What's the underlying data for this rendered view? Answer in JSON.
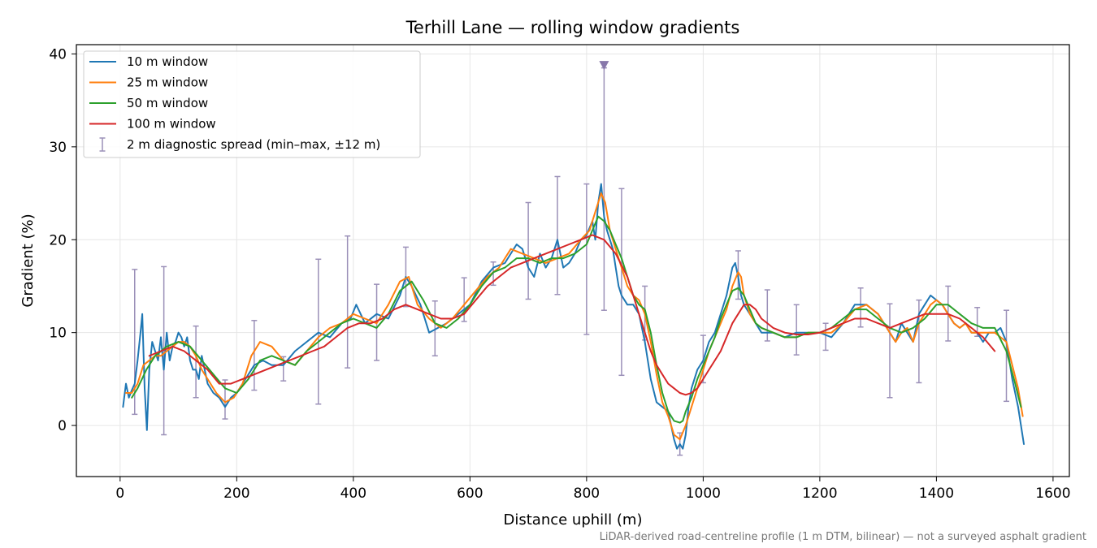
{
  "chart_data": {
    "type": "line",
    "title": "Terhill Lane — rolling window gradients",
    "xlabel": "Distance uphill (m)",
    "ylabel": "Gradient (%)",
    "xlim": [
      -75,
      1628
    ],
    "ylim": [
      -5.5,
      41
    ],
    "xticks": [
      0,
      200,
      400,
      600,
      800,
      1000,
      1200,
      1400,
      1600
    ],
    "yticks": [
      0,
      10,
      20,
      30,
      40
    ],
    "grid": true,
    "legend_position": "top-left",
    "footnote": "LiDAR-derived road-centreline profile (1 m DTM, bilinear) — not a surveyed asphalt gradient",
    "series": [
      {
        "name": "10 m window",
        "color": "#1f77b4",
        "x": [
          5,
          10,
          15,
          20,
          25,
          30,
          35,
          38,
          42,
          46,
          50,
          55,
          60,
          65,
          70,
          75,
          80,
          85,
          90,
          95,
          100,
          105,
          110,
          115,
          120,
          125,
          130,
          135,
          140,
          145,
          150,
          160,
          170,
          180,
          190,
          200,
          215,
          230,
          245,
          260,
          280,
          300,
          320,
          340,
          360,
          380,
          395,
          405,
          420,
          440,
          460,
          480,
          490,
          500,
          515,
          530,
          545,
          560,
          580,
          600,
          620,
          640,
          660,
          680,
          690,
          700,
          710,
          720,
          730,
          740,
          750,
          760,
          770,
          780,
          790,
          800,
          810,
          815,
          820,
          825,
          830,
          835,
          840,
          845,
          850,
          855,
          860,
          870,
          880,
          890,
          900,
          910,
          920,
          930,
          940,
          950,
          955,
          960,
          965,
          970,
          975,
          980,
          990,
          1000,
          1010,
          1020,
          1030,
          1040,
          1050,
          1055,
          1060,
          1065,
          1070,
          1075,
          1080,
          1090,
          1100,
          1120,
          1140,
          1160,
          1180,
          1200,
          1220,
          1240,
          1260,
          1280,
          1300,
          1310,
          1320,
          1330,
          1340,
          1350,
          1360,
          1370,
          1380,
          1390,
          1400,
          1410,
          1420,
          1430,
          1440,
          1450,
          1460,
          1470,
          1480,
          1490,
          1500,
          1510,
          1520,
          1530,
          1540,
          1550
        ],
        "y": [
          2,
          4.5,
          3,
          3.8,
          4.5,
          7,
          10,
          12,
          4,
          -0.5,
          6,
          9,
          8,
          7,
          9.5,
          6,
          10,
          7,
          8.5,
          9,
          10,
          9.5,
          8.5,
          9.5,
          7,
          6,
          6,
          5,
          7.5,
          6,
          4.5,
          3.5,
          3,
          2,
          3,
          3.5,
          5,
          6.5,
          7,
          6.5,
          6.5,
          8,
          9,
          10,
          9.5,
          11,
          11.5,
          13,
          11,
          12,
          11.5,
          14,
          16,
          15,
          13,
          10,
          10.5,
          11,
          12,
          13,
          15.5,
          17,
          17.5,
          19.5,
          19,
          17,
          16,
          18.5,
          17,
          18,
          20,
          17,
          17.5,
          18.5,
          20,
          20.5,
          22,
          20,
          24,
          26,
          22.5,
          21,
          20,
          19,
          17,
          15,
          14,
          13,
          13,
          12,
          9,
          5,
          2.5,
          2,
          1.5,
          -1.5,
          -2.5,
          -2,
          -2.5,
          -1,
          2,
          4,
          6,
          7,
          9,
          10,
          12,
          14,
          17,
          17.5,
          16,
          14,
          13,
          12.5,
          12,
          11,
          10,
          10,
          9.5,
          10,
          10,
          10,
          9.5,
          11,
          13,
          13,
          12,
          11,
          10,
          9,
          11,
          10,
          9,
          12,
          13,
          14,
          13.5,
          13,
          12,
          11,
          10.5,
          11,
          10,
          10,
          9,
          10,
          10,
          10.5,
          9,
          5,
          2,
          -2
        ]
      },
      {
        "name": "25 m window",
        "color": "#ff7f0e",
        "x": [
          10,
          20,
          30,
          40,
          50,
          60,
          70,
          80,
          90,
          100,
          110,
          120,
          130,
          140,
          150,
          165,
          180,
          195,
          210,
          225,
          240,
          260,
          280,
          300,
          320,
          340,
          360,
          380,
          400,
          420,
          440,
          460,
          480,
          495,
          510,
          530,
          550,
          570,
          590,
          610,
          630,
          650,
          670,
          690,
          710,
          730,
          750,
          770,
          790,
          805,
          815,
          825,
          832,
          840,
          850,
          860,
          870,
          880,
          890,
          900,
          910,
          920,
          930,
          940,
          950,
          960,
          970,
          980,
          990,
          1000,
          1010,
          1020,
          1030,
          1040,
          1050,
          1060,
          1065,
          1070,
          1080,
          1090,
          1100,
          1120,
          1140,
          1160,
          1180,
          1200,
          1220,
          1240,
          1260,
          1280,
          1300,
          1310,
          1320,
          1330,
          1340,
          1350,
          1360,
          1370,
          1380,
          1390,
          1400,
          1410,
          1420,
          1430,
          1440,
          1450,
          1460,
          1470,
          1480,
          1490,
          1500,
          1510,
          1520,
          1530,
          1540,
          1548
        ],
        "y": [
          3.5,
          3.5,
          4.5,
          6.5,
          7,
          7.5,
          7.5,
          8,
          8.5,
          9,
          9,
          8.5,
          7.5,
          6,
          5,
          3.5,
          2.5,
          3,
          4.5,
          7.5,
          9,
          8.5,
          7,
          6.5,
          8,
          9.5,
          10.5,
          11,
          12,
          11.5,
          11,
          13,
          15.5,
          16,
          13,
          11.5,
          10.5,
          11.5,
          13,
          14.5,
          16,
          17,
          19,
          18.5,
          18,
          17.5,
          18,
          18.5,
          20,
          21,
          23,
          25,
          24,
          21,
          19,
          17,
          15,
          14,
          13.5,
          12,
          9,
          5.5,
          2.5,
          1,
          -1,
          -1.5,
          0,
          2,
          4,
          6,
          8,
          9.5,
          11,
          12.5,
          15,
          16.5,
          16,
          14,
          12,
          11,
          10.5,
          10,
          9.5,
          9.5,
          10,
          10,
          10,
          11,
          12.5,
          13,
          12,
          11,
          10,
          9,
          10,
          10.5,
          9,
          11,
          12,
          13,
          13.5,
          13,
          12,
          11,
          10.5,
          11,
          10,
          10,
          10,
          10,
          10,
          9.5,
          9,
          6.5,
          4,
          1
        ]
      },
      {
        "name": "50 m window",
        "color": "#2ca02c",
        "x": [
          20,
          30,
          45,
          60,
          80,
          100,
          120,
          140,
          160,
          180,
          200,
          220,
          240,
          260,
          280,
          300,
          320,
          340,
          360,
          380,
          400,
          420,
          440,
          460,
          480,
          500,
          520,
          540,
          560,
          580,
          600,
          620,
          640,
          660,
          680,
          700,
          720,
          740,
          760,
          780,
          800,
          810,
          820,
          830,
          840,
          850,
          860,
          870,
          880,
          890,
          900,
          910,
          920,
          930,
          940,
          950,
          960,
          965,
          970,
          980,
          990,
          1000,
          1010,
          1020,
          1030,
          1040,
          1050,
          1060,
          1070,
          1080,
          1090,
          1100,
          1120,
          1140,
          1160,
          1180,
          1200,
          1220,
          1240,
          1260,
          1280,
          1300,
          1320,
          1340,
          1360,
          1380,
          1400,
          1420,
          1440,
          1460,
          1480,
          1500,
          1520,
          1535,
          1545
        ],
        "y": [
          3,
          4,
          6,
          7.5,
          8.5,
          9,
          8.5,
          7,
          5.5,
          4,
          3.5,
          5,
          7,
          7.5,
          7,
          6.5,
          8,
          9,
          10,
          11,
          11.5,
          11,
          10.5,
          12,
          14.5,
          15.5,
          13.5,
          11,
          10.5,
          11.5,
          13,
          15,
          16.5,
          17,
          18,
          18,
          17.5,
          18,
          18,
          18.5,
          19.5,
          21,
          22.5,
          22,
          21,
          19.5,
          18,
          16,
          14,
          13,
          12.5,
          10,
          6.5,
          3.5,
          1.5,
          0.5,
          0.3,
          0.5,
          1.5,
          3,
          5,
          6.5,
          8,
          9.5,
          11.5,
          13,
          14.5,
          14.8,
          14,
          12.5,
          11,
          10.5,
          10,
          9.5,
          9.5,
          10,
          10,
          10.5,
          11.5,
          12.5,
          12.5,
          11.5,
          10.5,
          10,
          10.5,
          11.5,
          13,
          13,
          12,
          11,
          10.5,
          10.5,
          8,
          4.5,
          2
        ]
      },
      {
        "name": "100 m window",
        "color": "#d62728",
        "x": [
          50,
          70,
          90,
          110,
          130,
          150,
          170,
          190,
          210,
          230,
          250,
          270,
          290,
          310,
          330,
          350,
          370,
          390,
          410,
          430,
          450,
          470,
          490,
          510,
          530,
          550,
          570,
          590,
          610,
          630,
          650,
          670,
          690,
          710,
          730,
          750,
          770,
          790,
          810,
          830,
          850,
          870,
          880,
          890,
          900,
          910,
          920,
          930,
          940,
          950,
          960,
          970,
          980,
          990,
          1000,
          1010,
          1020,
          1030,
          1040,
          1050,
          1060,
          1070,
          1080,
          1090,
          1100,
          1120,
          1140,
          1160,
          1180,
          1200,
          1220,
          1240,
          1260,
          1280,
          1300,
          1320,
          1340,
          1360,
          1380,
          1400,
          1420,
          1440,
          1460,
          1480,
          1500
        ],
        "y": [
          7.5,
          8,
          8.5,
          8,
          7,
          6,
          4.5,
          4.5,
          5,
          5.5,
          6,
          6.5,
          7,
          7.5,
          8,
          8.5,
          9.5,
          10.5,
          11,
          11,
          11.5,
          12.5,
          13,
          12.5,
          12,
          11.5,
          11.5,
          12,
          13.5,
          15,
          16,
          17,
          17.5,
          18,
          18.5,
          19,
          19.5,
          20,
          20.5,
          20,
          18.5,
          16,
          14,
          12,
          10,
          8,
          6.5,
          5.5,
          4.5,
          4,
          3.5,
          3.3,
          3.5,
          4,
          5,
          6,
          7,
          8,
          9.5,
          11,
          12,
          13,
          13,
          12.5,
          11.5,
          10.5,
          10,
          9.8,
          9.8,
          10,
          10.5,
          11,
          11.5,
          11.5,
          11,
          10.5,
          11,
          11.5,
          12,
          12,
          12,
          11.5,
          10.5,
          9.5,
          8
        ]
      }
    ],
    "errorbars": {
      "name": "2 m diagnostic spread (min–max, ±12 m)",
      "color": "#9b90b8",
      "x": [
        25,
        75,
        130,
        180,
        230,
        280,
        340,
        390,
        440,
        490,
        540,
        590,
        640,
        700,
        750,
        800,
        830,
        860,
        900,
        960,
        1000,
        1060,
        1110,
        1160,
        1210,
        1270,
        1320,
        1370,
        1420,
        1470,
        1520
      ],
      "low": [
        1.2,
        -1,
        3,
        0.7,
        3.8,
        4.8,
        2.3,
        6.2,
        7,
        12.8,
        7.5,
        11.2,
        15.1,
        13.6,
        14.1,
        9.8,
        12.4,
        5.4,
        9.2,
        -3.2,
        4.6,
        13.6,
        9.1,
        7.6,
        8.1,
        10.6,
        3,
        4.6,
        9.1,
        9.6,
        2.6
      ],
      "high": [
        16.8,
        17.1,
        10.7,
        4.9,
        11.3,
        7.4,
        17.9,
        20.4,
        15.2,
        19.2,
        13.4,
        15.9,
        17.6,
        24,
        26.8,
        26,
        38.5,
        25.5,
        15,
        -0.8,
        9.7,
        18.8,
        14.6,
        13,
        11,
        14.8,
        13.1,
        13.5,
        15,
        12.7,
        12.4
      ],
      "marker": {
        "x": 830,
        "y": 38.8
      }
    }
  }
}
